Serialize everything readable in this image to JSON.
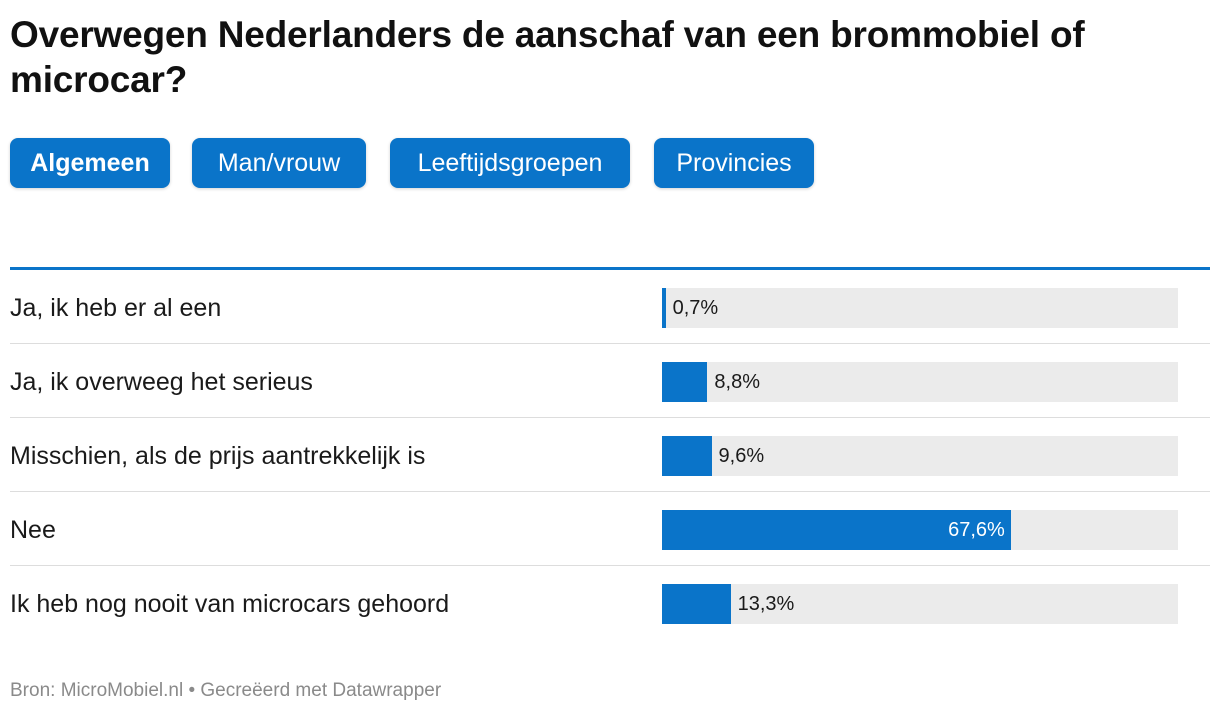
{
  "title": "Overwegen Nederlanders de aanschaf van een brommobiel of microcar?",
  "tabs": [
    {
      "label": "Algemeen",
      "active": true
    },
    {
      "label": "Man/vrouw",
      "active": false
    },
    {
      "label": "Leeftijdsgroepen",
      "active": false
    },
    {
      "label": "Provincies",
      "active": false
    }
  ],
  "colors": {
    "accent": "#0a74c9",
    "track": "#ebebeb",
    "divider": "#dddddd"
  },
  "chart_data": {
    "type": "bar",
    "orientation": "horizontal",
    "title": "Overwegen Nederlanders de aanschaf van een brommobiel of microcar?",
    "categories": [
      "Ja, ik heb er al een",
      "Ja, ik overweeg het serieus",
      "Misschien, als de prijs aantrekkelijk is",
      "Nee",
      "Ik heb nog nooit van microcars gehoord"
    ],
    "values": [
      0.7,
      8.8,
      9.6,
      67.6,
      13.3
    ],
    "value_labels": [
      "0,7%",
      "8,8%",
      "9,6%",
      "67,6%",
      "13,3%"
    ],
    "unit": "%",
    "xlim": [
      0,
      100
    ],
    "xlabel": "",
    "ylabel": "",
    "grid": false,
    "legend": "none"
  },
  "footer": {
    "source": "Bron: MicroMobiel.nl • Gecreëerd met Datawrapper"
  }
}
